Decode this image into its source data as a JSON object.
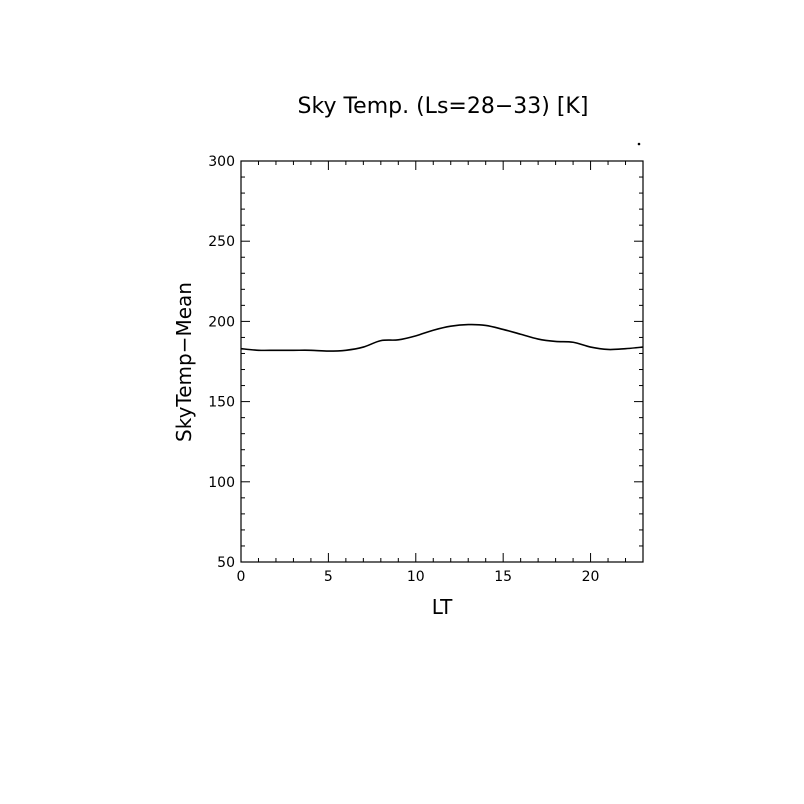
{
  "chart_data": {
    "type": "line",
    "title": "Sky Temp. (Ls=28−33) [K]",
    "xlabel": "LT",
    "ylabel": "SkyTemp−Mean",
    "xlim": [
      0,
      23
    ],
    "ylim": [
      50,
      300
    ],
    "xticks": [
      0,
      5,
      10,
      15,
      20
    ],
    "yticks": [
      50,
      100,
      150,
      200,
      250,
      300
    ],
    "grid": false,
    "series": [
      {
        "x": [
          0,
          1,
          2,
          3,
          4,
          5,
          6,
          7,
          8,
          9,
          10,
          11,
          12,
          13,
          14,
          15,
          16,
          17,
          18,
          19,
          20,
          21,
          22,
          23
        ],
        "values": [
          183,
          182,
          182,
          182,
          182,
          181.5,
          182,
          184,
          188,
          188.5,
          191,
          194.5,
          197,
          198,
          197.5,
          195,
          192,
          189,
          187.5,
          187,
          184,
          182.5,
          183,
          184
        ]
      }
    ]
  }
}
